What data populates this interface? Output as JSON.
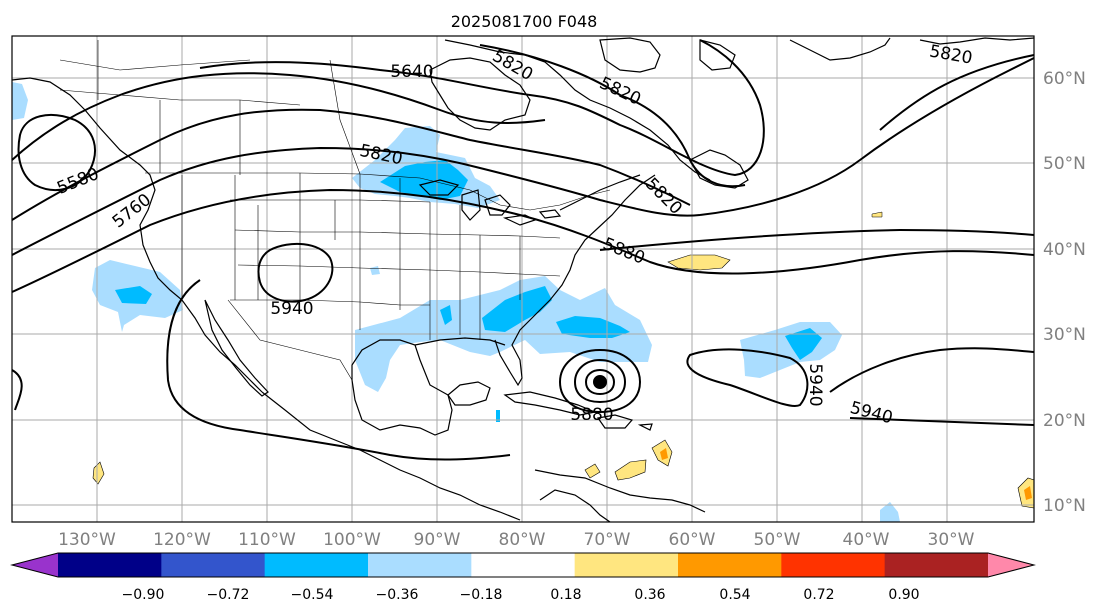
{
  "title": "2025081700 F048",
  "lon_labels": [
    "130°W",
    "120°W",
    "110°W",
    "100°W",
    "90°W",
    "80°W",
    "70°W",
    "60°W",
    "50°W",
    "40°W",
    "30°W"
  ],
  "lat_labels": [
    "60°N",
    "50°N",
    "40°N",
    "30°N",
    "20°N",
    "10°N"
  ],
  "colorbar": {
    "ticks": [
      "−0.90",
      "−0.72",
      "−0.54",
      "−0.36",
      "−0.18",
      "0.18",
      "0.36",
      "0.54",
      "0.72",
      "0.90"
    ],
    "colors": [
      "#9933cc",
      "#000088",
      "#3355cc",
      "#00bbff",
      "#aaddff",
      "#ffffff",
      "#ffe680",
      "#ff9900",
      "#ff3300",
      "#aa2222",
      "#ff88aa"
    ]
  },
  "contour_labels": [
    "5640",
    "5820",
    "5820",
    "5820",
    "5580",
    "5760",
    "5820",
    "5820",
    "5880",
    "5940",
    "5880",
    "5940",
    "5940"
  ],
  "colors": {
    "contour": "#000000",
    "shade_light_blue": "#aaddff",
    "shade_blue": "#00bbff",
    "shade_yellow": "#ffe680",
    "shade_orange": "#ff9900",
    "grid": "#aaaaaa",
    "axis_text": "#808080"
  }
}
